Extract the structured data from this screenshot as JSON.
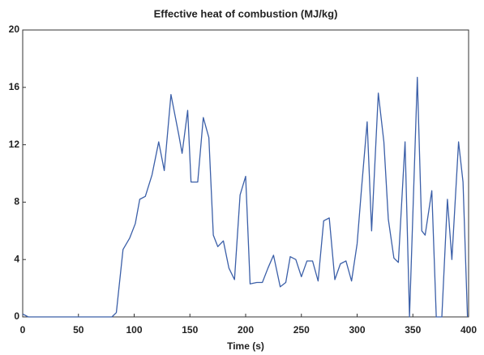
{
  "chart_data": {
    "type": "line",
    "title": "Effective heat of combustion (MJ/kg)",
    "xlabel": "Time (s)",
    "x": [
      0,
      5,
      80,
      84,
      90,
      96,
      101,
      105,
      110,
      116,
      122,
      127,
      133,
      140,
      143,
      148,
      151,
      157,
      162,
      167,
      171,
      175,
      180,
      185,
      190,
      195,
      200,
      204,
      210,
      215,
      220,
      225,
      231,
      236,
      240,
      245,
      250,
      255,
      260,
      265,
      270,
      275,
      280,
      285,
      290,
      295,
      300,
      304,
      309,
      313,
      319,
      324,
      328,
      333,
      337,
      343,
      347,
      354,
      358,
      361,
      367,
      371,
      376,
      381,
      385,
      391,
      395,
      399
    ],
    "series": [
      {
        "color": "#3b5fa8",
        "values": [
          0.2,
          0,
          0,
          0.3,
          4.7,
          5.5,
          6.5,
          8.2,
          8.4,
          9.9,
          12.2,
          10.2,
          15.5,
          12.7,
          11.4,
          14.4,
          9.4,
          9.4,
          13.9,
          12.5,
          5.7,
          4.9,
          5.3,
          3.4,
          2.6,
          8.5,
          9.8,
          2.3,
          2.4,
          2.4,
          3.4,
          4.3,
          2.1,
          2.4,
          4.2,
          4,
          2.8,
          3.9,
          3.9,
          2.5,
          6.7,
          6.9,
          2.6,
          3.7,
          3.9,
          2.5,
          5.1,
          9,
          13.6,
          6,
          15.6,
          12.2,
          6.8,
          4.1,
          3.8,
          12.2,
          0,
          16.7,
          6,
          5.7,
          8.8,
          0,
          0,
          8.2,
          4,
          12.2,
          9.4,
          0
        ]
      }
    ],
    "xlim": [
      0,
      400
    ],
    "xticks": [
      0,
      50,
      100,
      150,
      200,
      250,
      300,
      350,
      400
    ],
    "ylim": [
      0,
      20
    ],
    "yticks": [
      0,
      4,
      8,
      12,
      16,
      20
    ]
  }
}
